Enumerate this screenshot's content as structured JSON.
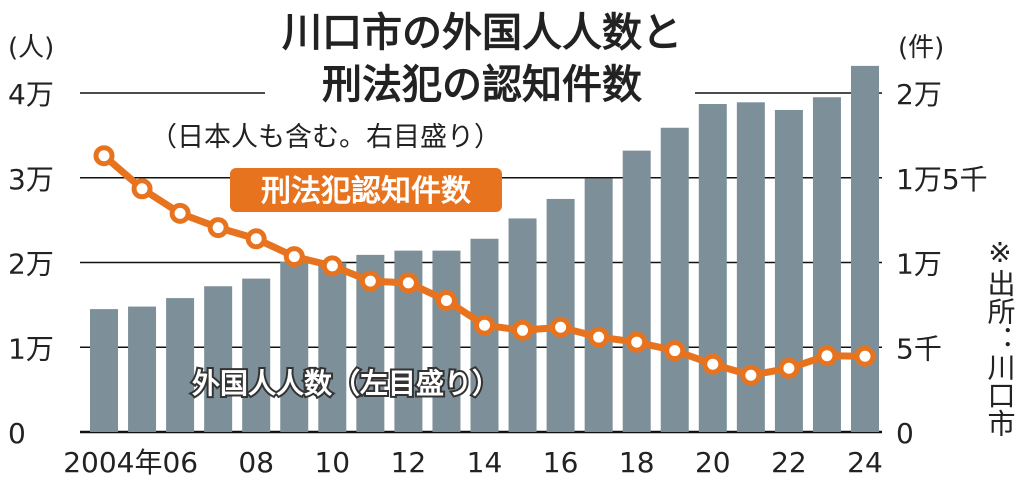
{
  "chart_data": {
    "type": "bar+line",
    "title_line1": "川口市の外国人人数と",
    "title_line2": "刑法犯の認知件数",
    "subtitle": "（日本人も含む。右目盛り）",
    "left_unit": "(人)",
    "right_unit": "(件)",
    "left_ticks": [
      "0",
      "1万",
      "2万",
      "3万",
      "4万"
    ],
    "left_tick_values": [
      0,
      10000,
      20000,
      30000,
      40000
    ],
    "right_ticks": [
      "0",
      "5千",
      "1万",
      "1万5千",
      "2万"
    ],
    "right_tick_values": [
      0,
      5000,
      10000,
      15000,
      20000
    ],
    "left_ylim": [
      0,
      40000
    ],
    "right_ylim": [
      0,
      20000
    ],
    "x_tick_labels": [
      "2004年06",
      "08",
      "10",
      "12",
      "14",
      "16",
      "18",
      "20",
      "22",
      "24"
    ],
    "years": [
      2004,
      2005,
      2006,
      2007,
      2008,
      2009,
      2010,
      2011,
      2012,
      2013,
      2014,
      2015,
      2016,
      2017,
      2018,
      2019,
      2020,
      2021,
      2022,
      2023,
      2024
    ],
    "series": [
      {
        "name": "外国人人数（左目盛り）",
        "type": "bar",
        "axis": "left",
        "color": "#7d9099",
        "values": [
          14500,
          14800,
          15800,
          17200,
          18100,
          20100,
          20000,
          20900,
          21400,
          21400,
          22800,
          25200,
          27500,
          29900,
          33200,
          35900,
          38700,
          38900,
          38000,
          39500,
          43200
        ]
      },
      {
        "name": "刑法犯認知件数",
        "type": "line",
        "axis": "right",
        "color": "#e8731e",
        "values": [
          16300,
          14350,
          12900,
          12060,
          11400,
          10350,
          9800,
          8900,
          8800,
          7760,
          6300,
          6000,
          6180,
          5600,
          5300,
          4800,
          4000,
          3350,
          3760,
          4500,
          4470
        ]
      }
    ],
    "source": "※出所：川口市",
    "grid": true
  }
}
